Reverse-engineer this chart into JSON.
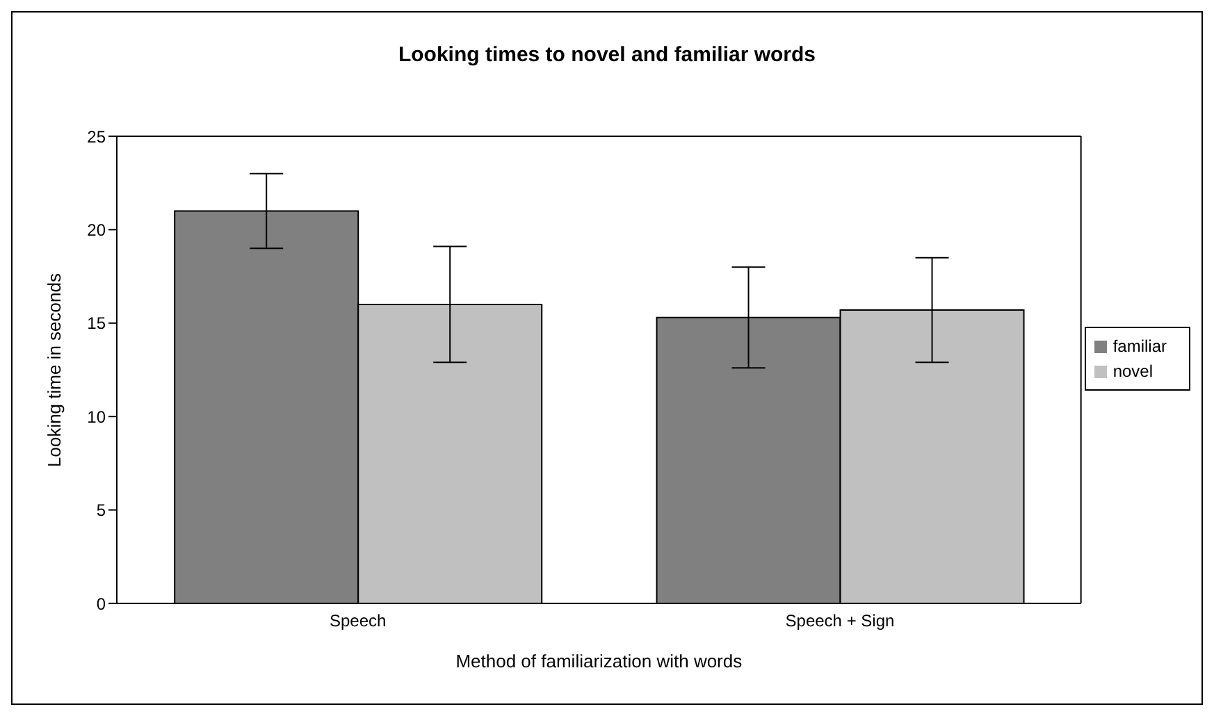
{
  "chart_data": {
    "type": "bar",
    "title": "Looking times to novel and familiar words",
    "xlabel": "Method of familiarization with words",
    "ylabel": "Looking time in seconds",
    "categories": [
      "Speech",
      "Speech + Sign"
    ],
    "series": [
      {
        "name": "familiar",
        "color": "#808080",
        "values": [
          21.0,
          15.3
        ],
        "errors": [
          2.0,
          2.7
        ]
      },
      {
        "name": "novel",
        "color": "#c0c0c0",
        "values": [
          16.0,
          15.7
        ],
        "errors": [
          3.1,
          2.8
        ]
      }
    ],
    "ylim": [
      0,
      25
    ],
    "yticks": [
      0,
      5,
      10,
      15,
      20,
      25
    ],
    "grid": false,
    "legend": "right"
  }
}
